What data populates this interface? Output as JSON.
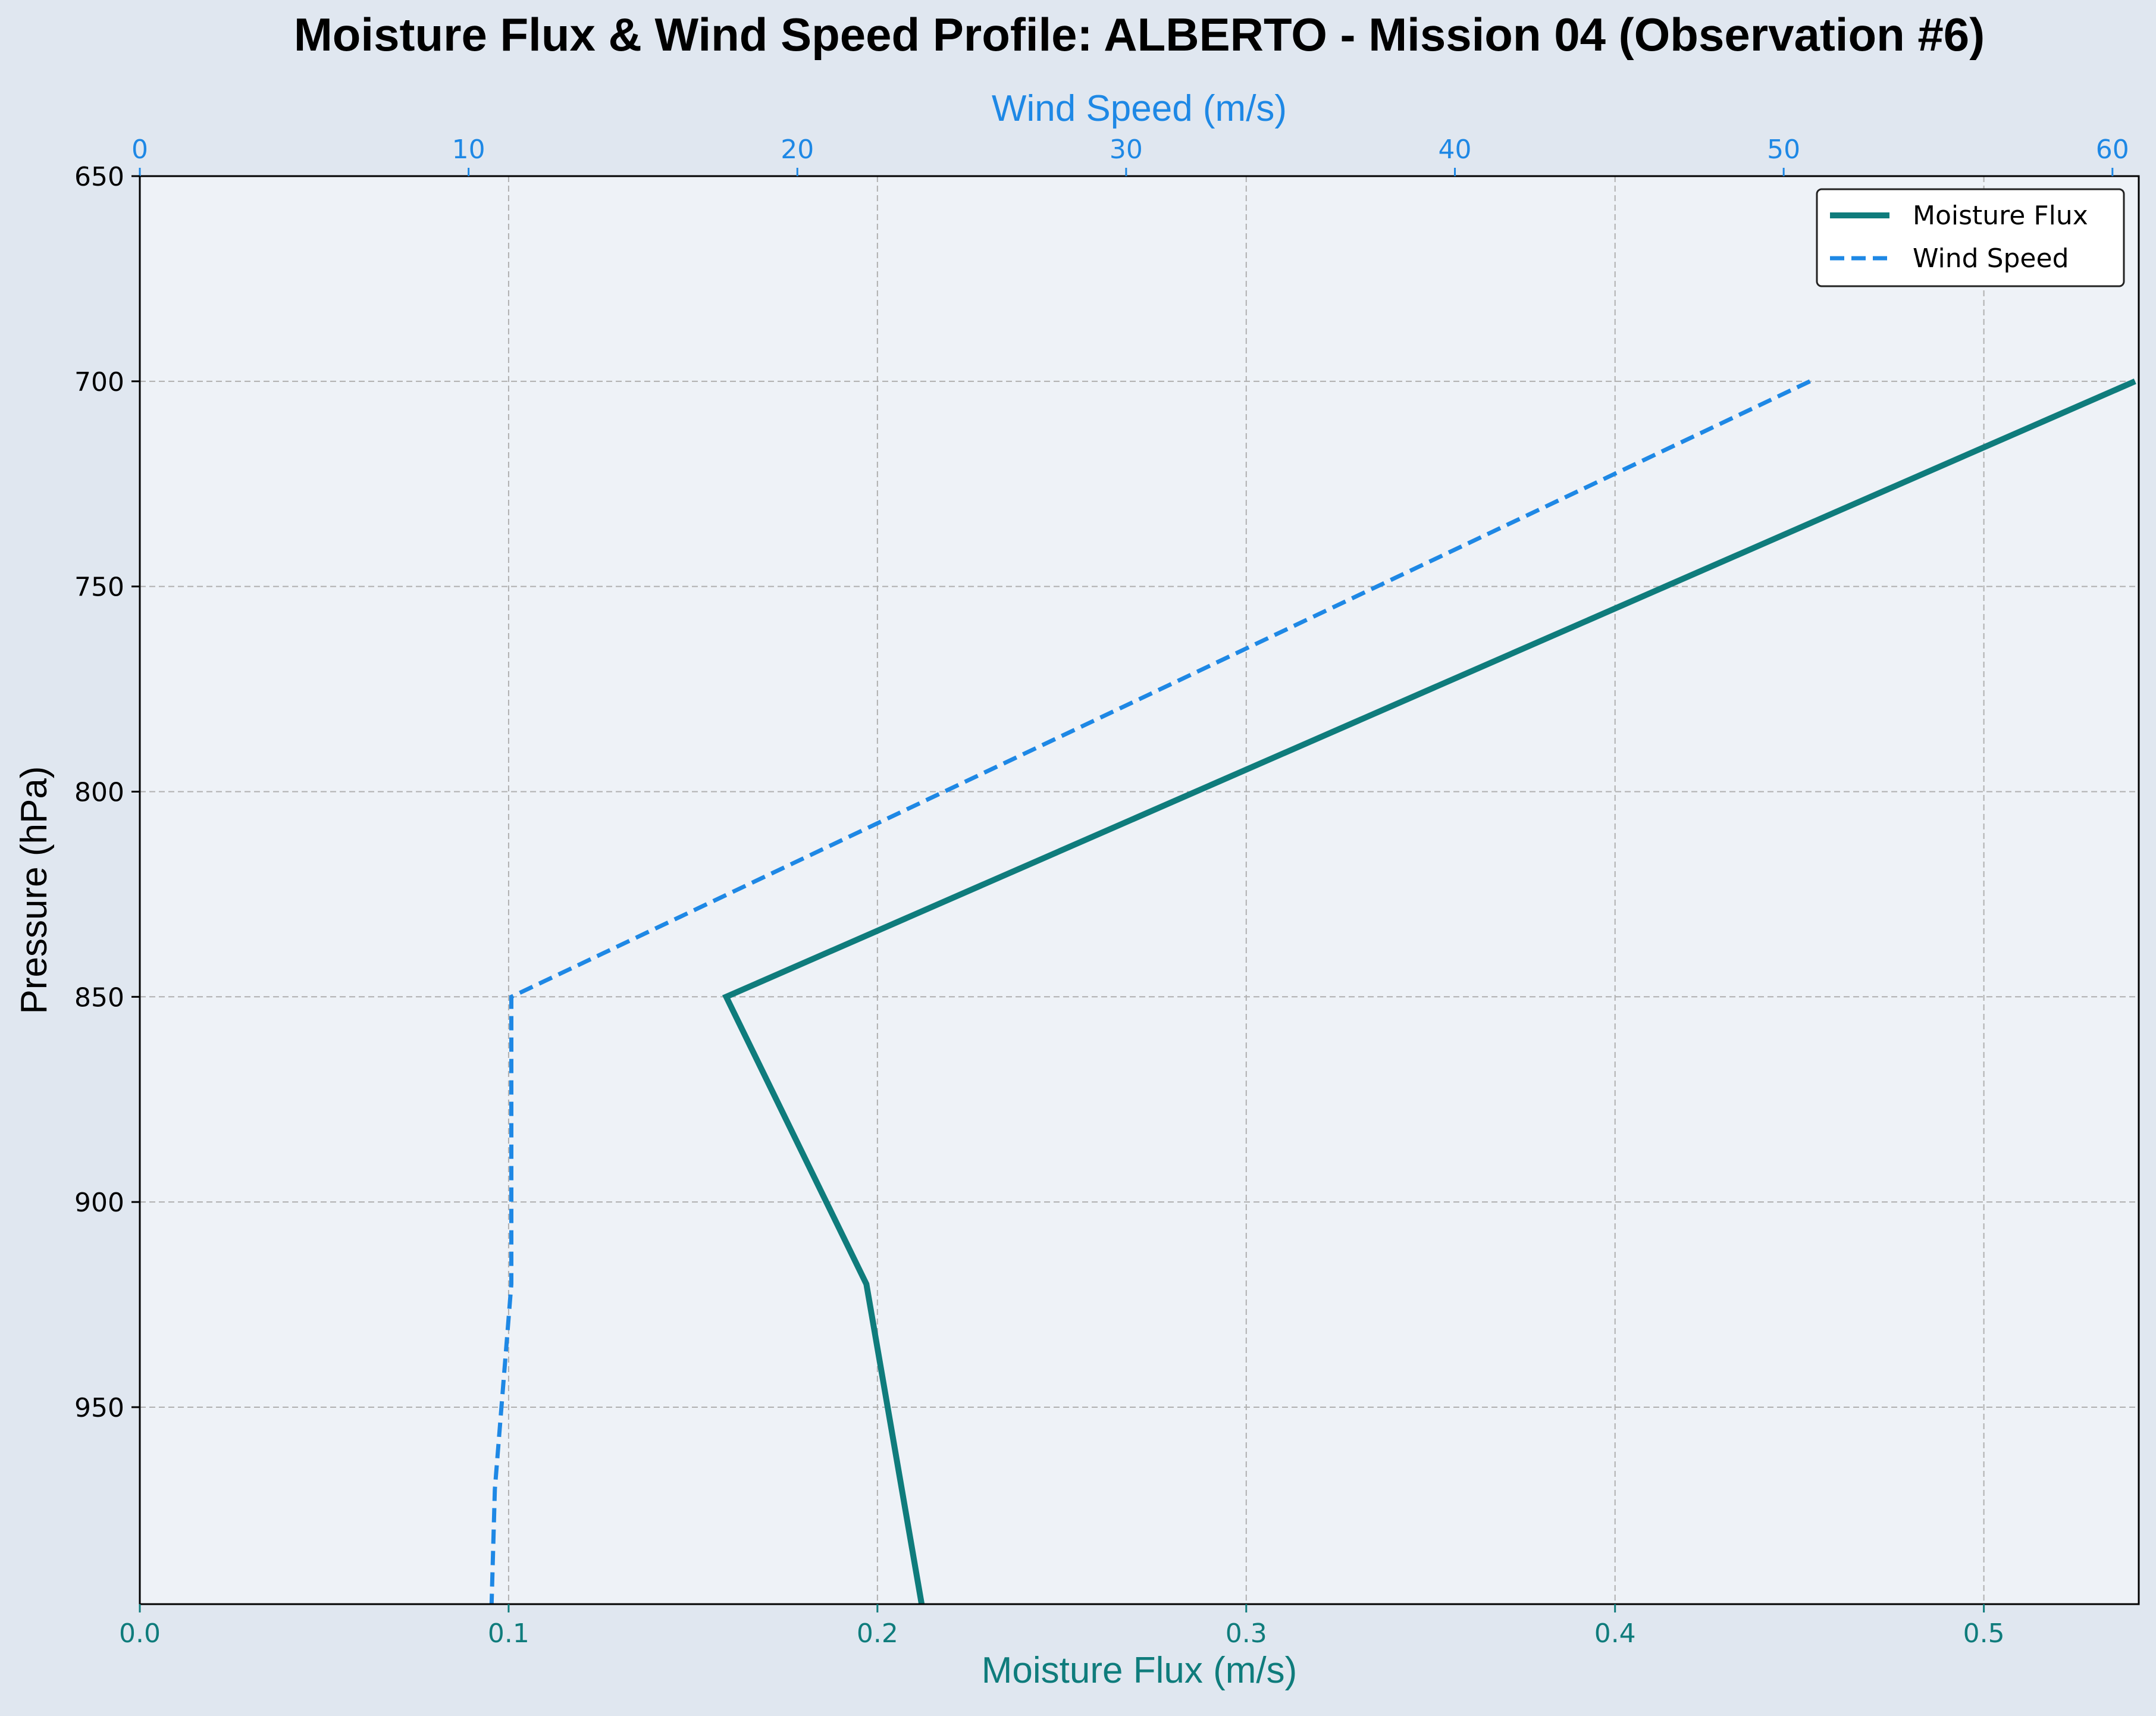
{
  "chart_data": {
    "type": "line",
    "title": "Moisture Flux & Wind Speed Profile: ALBERTO - Mission 04 (Observation #6)",
    "xlabel": "Moisture Flux (m/s)",
    "x2label": "Wind Speed (m/s)",
    "ylabel": "Pressure (hPa)",
    "xlim": [
      0.0,
      0.542
    ],
    "x2lim": [
      0,
      60.8
    ],
    "ylim": [
      650,
      998
    ],
    "y_inverted": true,
    "grid": true,
    "legend_position": "top-right",
    "x_ticks": [
      "0.0",
      "0.1",
      "0.2",
      "0.3",
      "0.4",
      "0.5"
    ],
    "x2_ticks": [
      "0",
      "10",
      "20",
      "30",
      "40",
      "50",
      "60"
    ],
    "y_ticks": [
      "650",
      "700",
      "750",
      "800",
      "850",
      "900",
      "950"
    ],
    "series": [
      {
        "name": "Moisture Flux",
        "axis": "bottom",
        "color": "#0f7c7c",
        "style": "solid",
        "points": [
          [
            0.541,
            700
          ],
          [
            0.159,
            850
          ],
          [
            0.197,
            920
          ],
          [
            0.212,
            998
          ]
        ]
      },
      {
        "name": "Wind Speed",
        "axis": "top",
        "color": "#1e88e5",
        "style": "dashed",
        "points": [
          [
            50.8,
            700
          ],
          [
            11.3,
            850
          ],
          [
            11.3,
            920
          ],
          [
            10.8,
            970
          ],
          [
            10.7,
            998
          ]
        ]
      }
    ]
  }
}
